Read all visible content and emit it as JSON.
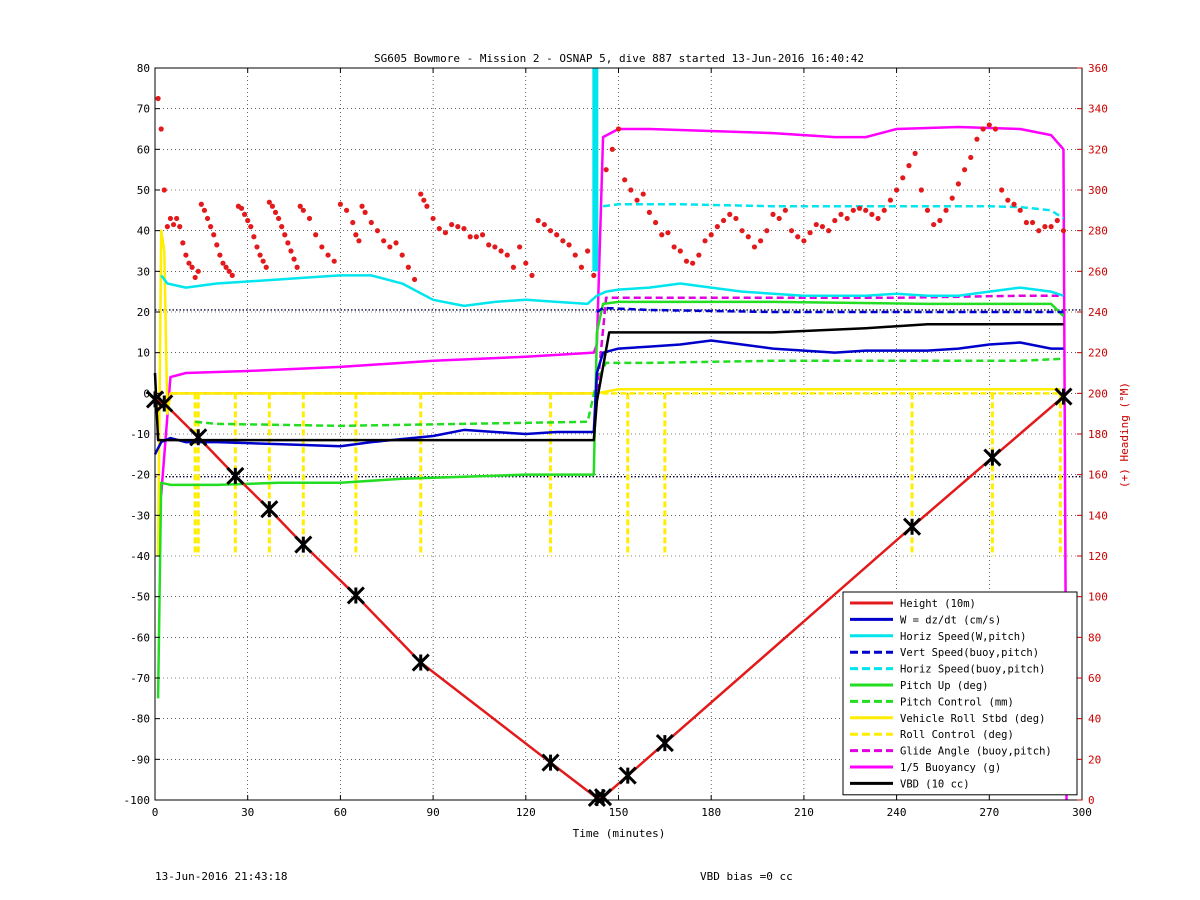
{
  "chart_data": {
    "type": "line",
    "title": "SG605 Bowmore - Mission 2 - OSNAP 5, dive 887 started 13-Jun-2016 16:40:42",
    "xlabel": "Time (minutes)",
    "ylabel": "",
    "ylabel_right": "(+) Heading (°M)",
    "xlim": [
      0,
      300
    ],
    "ylim": [
      -100,
      80
    ],
    "ylim_right": [
      0,
      360
    ],
    "x_ticks": [
      0,
      30,
      60,
      90,
      120,
      150,
      180,
      210,
      240,
      270,
      300
    ],
    "y_ticks": [
      -100,
      -90,
      -80,
      -70,
      -60,
      -50,
      -40,
      -30,
      -20,
      -10,
      0,
      10,
      20,
      30,
      40,
      50,
      60,
      70,
      80
    ],
    "y_ticks_right": [
      0,
      20,
      40,
      60,
      80,
      100,
      120,
      140,
      160,
      180,
      200,
      220,
      240,
      260,
      280,
      300,
      320,
      340,
      360
    ],
    "grid": true,
    "legend_position": "bottom-right",
    "reference_lines": [
      20.5,
      -20.5
    ],
    "series": [
      {
        "name": "Height (10m)",
        "color": "#e31a1c",
        "style": "solid",
        "x": [
          0,
          3,
          14,
          26,
          37,
          48,
          65,
          86,
          128,
          143,
          145,
          153,
          165,
          245,
          271,
          294
        ],
        "y": [
          -1.5,
          -2.5,
          -10.8,
          -20.3,
          -28.5,
          -37.2,
          -49.7,
          -66.2,
          -90.8,
          -99.5,
          -99.3,
          -94.0,
          -86.0,
          -32.8,
          -15.8,
          -0.8
        ]
      },
      {
        "name": "W = dz/dt (cm/s)",
        "color": "#0000cc",
        "style": "solid",
        "x": [
          0,
          2,
          5,
          10,
          20,
          40,
          60,
          70,
          90,
          100,
          110,
          120,
          130,
          142,
          143,
          145,
          150,
          160,
          170,
          180,
          190,
          200,
          210,
          220,
          230,
          240,
          250,
          260,
          270,
          280,
          290,
          294
        ],
        "y": [
          -15,
          -12,
          -11,
          -12,
          -12,
          -12.5,
          -13,
          -12,
          -10.5,
          -9,
          -9.5,
          -10,
          -9.5,
          -9.5,
          5,
          10,
          11,
          11.5,
          12,
          13,
          12,
          11,
          10.5,
          10,
          10.5,
          10.5,
          10.5,
          11,
          12,
          12.5,
          11,
          11
        ]
      },
      {
        "name": "Horiz Speed(W,pitch)",
        "color": "#00e5ee",
        "style": "solid",
        "x": [
          2,
          4,
          10,
          20,
          30,
          40,
          50,
          60,
          70,
          80,
          90,
          100,
          110,
          120,
          130,
          140,
          143,
          146,
          150,
          160,
          170,
          180,
          190,
          200,
          210,
          220,
          230,
          240,
          250,
          260,
          270,
          280,
          290,
          294
        ],
        "y": [
          29,
          27,
          26,
          27,
          27.5,
          28,
          28.5,
          29,
          29,
          27,
          23,
          21.5,
          22.5,
          23,
          22.5,
          22,
          24,
          25,
          25.5,
          26,
          27,
          26,
          25,
          24.5,
          24,
          24,
          24,
          24.5,
          24,
          24,
          25,
          26,
          25,
          24
        ]
      },
      {
        "name": "Vert Speed(buoy,pitch)",
        "color": "#0000cc",
        "style": "dashed",
        "x": [
          143,
          145,
          160,
          200,
          240,
          280,
          294
        ],
        "y": [
          20,
          21,
          20.5,
          20,
          20,
          20,
          20
        ]
      },
      {
        "name": "Horiz Speed(buoy,pitch)",
        "color": "#00e5ee",
        "style": "dashed",
        "x": [
          145,
          150,
          170,
          200,
          240,
          270,
          280,
          290,
          294
        ],
        "y": [
          46,
          46.5,
          46.5,
          46,
          46,
          46,
          45.8,
          45,
          43
        ]
      },
      {
        "name": "Pitch Up (deg)",
        "color": "#22dd22",
        "style": "solid",
        "x": [
          1,
          2,
          5,
          10,
          20,
          40,
          60,
          80,
          100,
          120,
          140,
          142,
          143,
          145,
          150,
          200,
          250,
          280,
          290,
          294
        ],
        "y": [
          -75,
          -22,
          -22.5,
          -22.5,
          -22.5,
          -22,
          -22,
          -21,
          -20.5,
          -20,
          -20,
          -20,
          15,
          22,
          22.5,
          22.5,
          22,
          22,
          22,
          19
        ]
      },
      {
        "name": "Pitch Control (mm)",
        "color": "#22dd22",
        "style": "dashed",
        "x": [
          13,
          20,
          60,
          100,
          140,
          143,
          146,
          160,
          200,
          240,
          280,
          294
        ],
        "y": [
          -7,
          -7.5,
          -8,
          -7.5,
          -7,
          3,
          7.5,
          7.5,
          8,
          8,
          8,
          8.5
        ]
      },
      {
        "name": "Vehicle Roll Stbd (deg)",
        "color": "#ffee00",
        "style": "solid",
        "x": [
          1,
          2,
          3,
          4,
          5,
          6,
          8,
          140,
          143,
          150,
          200,
          290,
          293
        ],
        "y": [
          -40,
          40,
          35,
          -5,
          0,
          0,
          0,
          0,
          0,
          1,
          1,
          1,
          1
        ]
      },
      {
        "name": "Roll Control (deg)",
        "color": "#ffee00",
        "style": "dashed",
        "x": [
          13,
          14,
          26,
          37,
          48,
          65,
          86,
          128,
          153,
          165,
          245,
          271,
          293
        ],
        "y": [
          -40,
          -40,
          -40,
          -40,
          -40,
          -40,
          -40,
          -40,
          -40,
          -40,
          -40,
          -40,
          -40
        ]
      },
      {
        "name": "Glide Angle (buoy,pitch)",
        "color": "#e000e0",
        "style": "dashed",
        "x": [
          5,
          10,
          60,
          100,
          140,
          143,
          146,
          200,
          240,
          280,
          294
        ],
        "y": [
          0,
          0,
          0,
          0,
          0,
          0,
          23.5,
          23.5,
          23.5,
          24,
          24
        ]
      },
      {
        "name": "1/5 Buoyancy (g)",
        "color": "#ff00ff",
        "style": "solid",
        "x": [
          2,
          5,
          10,
          30,
          60,
          90,
          120,
          142,
          143,
          145,
          150,
          160,
          200,
          220,
          230,
          240,
          260,
          280,
          290,
          294,
          295
        ],
        "y": [
          -25,
          4,
          5,
          5.5,
          6.5,
          8,
          9,
          10,
          12,
          63,
          65,
          65,
          64,
          63,
          63,
          65,
          65.5,
          65,
          63.5,
          60,
          -100
        ]
      },
      {
        "name": "VBD (10 cc)",
        "color": "#000000",
        "style": "solid",
        "x": [
          0,
          1,
          2,
          10,
          50,
          90,
          120,
          142,
          143,
          147,
          150,
          200,
          230,
          250,
          280,
          294
        ],
        "y": [
          5,
          -11.5,
          -11.5,
          -11.5,
          -11.5,
          -11.5,
          -11.5,
          -11.5,
          -2,
          15,
          15,
          15,
          16,
          17,
          17,
          17
        ]
      }
    ],
    "heading_scatter": {
      "name": "(+) Heading (°M)",
      "color": "#e31a1c",
      "axis": "right",
      "x": [
        1,
        2,
        3,
        4,
        5,
        6,
        7,
        8,
        9,
        10,
        11,
        12,
        13,
        14,
        15,
        16,
        17,
        18,
        19,
        20,
        21,
        22,
        23,
        24,
        25,
        27,
        28,
        29,
        30,
        31,
        32,
        33,
        34,
        35,
        36,
        37,
        38,
        39,
        40,
        41,
        42,
        43,
        44,
        45,
        46,
        47,
        48,
        50,
        52,
        54,
        56,
        58,
        60,
        62,
        64,
        65,
        66,
        67,
        68,
        70,
        72,
        74,
        76,
        78,
        80,
        82,
        84,
        86,
        87,
        88,
        90,
        92,
        94,
        96,
        98,
        100,
        102,
        104,
        106,
        108,
        110,
        112,
        114,
        116,
        118,
        120,
        122,
        124,
        126,
        128,
        130,
        132,
        134,
        136,
        138,
        140,
        142,
        146,
        148,
        150,
        152,
        154,
        156,
        158,
        160,
        162,
        164,
        166,
        168,
        170,
        172,
        174,
        176,
        178,
        180,
        182,
        184,
        186,
        188,
        190,
        192,
        194,
        196,
        198,
        200,
        202,
        204,
        206,
        208,
        210,
        212,
        214,
        216,
        218,
        220,
        222,
        224,
        226,
        228,
        230,
        232,
        234,
        236,
        238,
        240,
        242,
        244,
        246,
        248,
        250,
        252,
        254,
        256,
        258,
        260,
        262,
        264,
        266,
        268,
        270,
        272,
        274,
        276,
        278,
        280,
        282,
        284,
        286,
        288,
        290,
        292,
        294
      ],
      "y": [
        345,
        330,
        300,
        282,
        286,
        283,
        286,
        282,
        274,
        268,
        264,
        262,
        257,
        260,
        293,
        290,
        286,
        282,
        278,
        273,
        268,
        264,
        262,
        260,
        258,
        292,
        291,
        288,
        285,
        282,
        277,
        272,
        268,
        265,
        262,
        294,
        292,
        289,
        286,
        282,
        278,
        274,
        270,
        266,
        262,
        292,
        290,
        286,
        278,
        272,
        268,
        265,
        293,
        290,
        284,
        278,
        275,
        292,
        289,
        284,
        280,
        275,
        272,
        274,
        268,
        262,
        256,
        298,
        295,
        292,
        286,
        281,
        279,
        283,
        282,
        281,
        277,
        277,
        278,
        273,
        272,
        270,
        268,
        262,
        272,
        264,
        258,
        285,
        283,
        280,
        278,
        275,
        273,
        268,
        262,
        270,
        258,
        310,
        320,
        330,
        305,
        300,
        295,
        298,
        289,
        284,
        278,
        279,
        272,
        270,
        265,
        264,
        268,
        275,
        278,
        282,
        285,
        288,
        286,
        280,
        277,
        272,
        275,
        280,
        288,
        286,
        290,
        280,
        277,
        275,
        279,
        283,
        282,
        280,
        285,
        288,
        286,
        290,
        291,
        290,
        288,
        286,
        290,
        295,
        300,
        306,
        312,
        318,
        300,
        290,
        283,
        285,
        290,
        296,
        303,
        310,
        316,
        325,
        330,
        332,
        330,
        300,
        295,
        293,
        290,
        284,
        284,
        280,
        282,
        282,
        285,
        280
      ]
    },
    "diamond_markers": {
      "series": "Height (10m)",
      "x": [
        0,
        3,
        14,
        26,
        37,
        48,
        65,
        86,
        128,
        143,
        145,
        153,
        165,
        245,
        271,
        294
      ],
      "y": [
        -1.5,
        -2.5,
        -10.8,
        -20.3,
        -28.5,
        -37.2,
        -49.7,
        -66.2,
        -90.8,
        -99.5,
        -99.3,
        -94.0,
        -86.0,
        -32.8,
        -15.8,
        -0.8
      ]
    },
    "spike_at_x": 142.5
  },
  "footer": {
    "timestamp": "13-Jun-2016 21:43:18",
    "vbd_bias": "VBD bias =0 cc"
  }
}
